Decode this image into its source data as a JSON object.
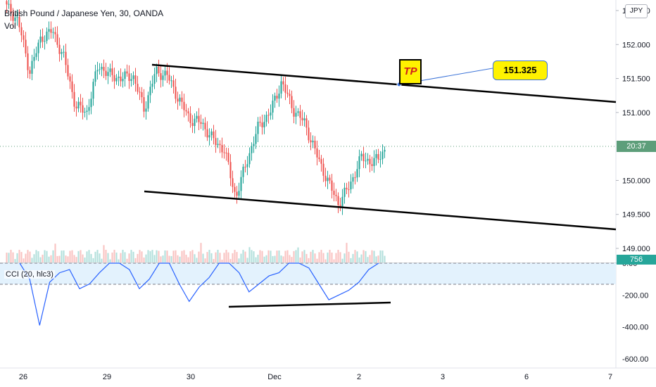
{
  "header": {
    "title": "British Pound / Japanese Yen, 30, OANDA",
    "volume_label": "Vol",
    "currency": "JPY"
  },
  "price_axis": {
    "tick_labels": [
      "152.500",
      "152.000",
      "151.500",
      "151.000",
      "150.000",
      "149.500",
      "149.000"
    ],
    "current_time_tag": "20:37",
    "volume_tag": "756"
  },
  "annotations": {
    "tp_label": "TP",
    "target_price": "151.325"
  },
  "indicator": {
    "label": "CCI (20, hlc3)",
    "tick_labels": [
      "0.00",
      "-200.00",
      "-400.00",
      "-600.00"
    ]
  },
  "time_axis": {
    "tick_labels": [
      "26",
      "29",
      "30",
      "Dec",
      "2",
      "3",
      "6",
      "7"
    ]
  },
  "colors": {
    "up": "#26a69a",
    "down": "#ef5350",
    "cci_line": "#2962ff",
    "cci_band": "#e3f2fd",
    "price_tag": "#5d9e7a"
  },
  "chart_data": [
    {
      "type": "candlestick",
      "title": "British Pound / Japanese Yen, 30, OANDA",
      "y_range": [
        149.0,
        152.6
      ],
      "y_ticks": [
        152.5,
        152.0,
        151.5,
        151.0,
        150.0,
        149.5,
        149.0
      ],
      "x_ticks": [
        "26",
        "29",
        "30",
        "Dec",
        "2",
        "3",
        "6",
        "7"
      ],
      "close_path": [
        [
          "26",
          152.55
        ],
        [
          "26",
          152.35
        ],
        [
          "26",
          151.6
        ],
        [
          "26",
          152.1
        ],
        [
          "26",
          152.2
        ],
        [
          "26",
          151.8
        ],
        [
          "29",
          151.1
        ],
        [
          "29",
          151.0
        ],
        [
          "29",
          151.7
        ],
        [
          "29",
          151.55
        ],
        [
          "29",
          151.5
        ],
        [
          "29",
          151.55
        ],
        [
          "29",
          151.05
        ],
        [
          "29",
          151.6
        ],
        [
          "30",
          151.55
        ],
        [
          "30",
          151.2
        ],
        [
          "30",
          150.9
        ],
        [
          "30",
          150.85
        ],
        [
          "30",
          150.6
        ],
        [
          "30",
          150.45
        ],
        [
          "Dec",
          149.75
        ],
        [
          "Dec",
          150.3
        ],
        [
          "Dec",
          150.8
        ],
        [
          "Dec",
          151.0
        ],
        [
          "Dec",
          151.45
        ],
        [
          "Dec",
          151.05
        ],
        [
          "Dec",
          150.85
        ],
        [
          "Dec",
          150.4
        ],
        [
          "Dec",
          150.0
        ],
        [
          "2",
          149.65
        ],
        [
          "2",
          149.95
        ],
        [
          "2",
          150.35
        ],
        [
          "2",
          150.25
        ],
        [
          "2",
          150.45
        ]
      ],
      "last_price_time": "20:37",
      "volume_last": 756
    },
    {
      "type": "line",
      "title": "CCI (20, hlc3)",
      "y_range": [
        -620,
        30
      ],
      "y_ticks": [
        0,
        -200,
        -400,
        -600
      ],
      "values": [
        0,
        -100,
        -390,
        -120,
        -60,
        -40,
        -160,
        -130,
        -60,
        0,
        0,
        -40,
        -160,
        -100,
        0,
        0,
        -130,
        -240,
        -150,
        -90,
        0,
        0,
        -60,
        -180,
        -130,
        -80,
        -60,
        0,
        0,
        -30,
        -130,
        -230,
        -200,
        -170,
        -120,
        -40,
        0
      ]
    }
  ]
}
